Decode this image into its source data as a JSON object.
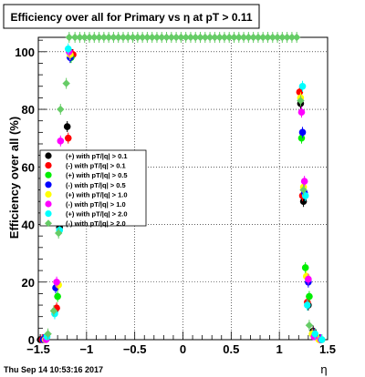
{
  "chart_data": {
    "type": "scatter",
    "title": "Efficiency over all for Primary vs   η at pT > 0.11",
    "xlabel": "η",
    "ylabel": "Efficiency over all (%)",
    "xlim": [
      -1.5,
      1.5
    ],
    "ylim": [
      0,
      105
    ],
    "x_ticks": [
      "−1.5",
      "−1",
      "−0.5",
      "0",
      "0.5",
      "1",
      "1.5"
    ],
    "y_ticks": [
      "0",
      "20",
      "40",
      "60",
      "80",
      "100"
    ],
    "grid": true,
    "legend_position": "middle-left",
    "timestamp": "Thu Sep 14 10:53:16 2017",
    "series": [
      {
        "name": "(+) with pT/|q| > 0.1",
        "color": "#000000",
        "points": [
          [
            -1.48,
            0
          ],
          [
            -1.33,
            10
          ],
          [
            -1.28,
            39
          ],
          [
            -1.2,
            74
          ],
          [
            -1.15,
            99
          ],
          [
            1.22,
            82
          ],
          [
            1.25,
            48
          ],
          [
            1.3,
            12
          ],
          [
            1.35,
            3
          ],
          [
            1.42,
            0
          ]
        ]
      },
      {
        "name": "(-) with pT/|q| > 0.1",
        "color": "#ff0000",
        "points": [
          [
            -1.46,
            0
          ],
          [
            -1.31,
            11
          ],
          [
            -1.26,
            42
          ],
          [
            -1.19,
            70
          ],
          [
            -1.14,
            99
          ],
          [
            1.21,
            86
          ],
          [
            1.24,
            50
          ],
          [
            1.29,
            13
          ],
          [
            1.36,
            2
          ],
          [
            1.43,
            0
          ]
        ]
      },
      {
        "name": "(+) with pT/|q| > 0.5",
        "color": "#00ee00",
        "points": [
          [
            -1.44,
            0
          ],
          [
            -1.3,
            15
          ],
          [
            -1.25,
            50
          ],
          [
            -1.18,
            64
          ],
          [
            -1.16,
            98
          ],
          [
            1.23,
            70
          ],
          [
            1.27,
            25
          ],
          [
            1.31,
            15
          ],
          [
            1.37,
            1
          ],
          [
            1.44,
            0
          ]
        ]
      },
      {
        "name": "(-) with pT/|q| > 0.5",
        "color": "#0000ff",
        "points": [
          [
            -1.45,
            0
          ],
          [
            -1.32,
            18
          ],
          [
            -1.26,
            55
          ],
          [
            -1.21,
            60
          ],
          [
            -1.17,
            98
          ],
          [
            1.24,
            72
          ],
          [
            1.26,
            51
          ],
          [
            1.3,
            20
          ],
          [
            1.35,
            2
          ],
          [
            1.42,
            0
          ]
        ]
      },
      {
        "name": "(+) with pT/|q| > 1.0",
        "color": "#ffff00",
        "points": [
          [
            -1.43,
            0
          ],
          [
            -1.29,
            19
          ],
          [
            -1.24,
            58
          ],
          [
            -1.2,
            63
          ],
          [
            -1.17,
            99
          ],
          [
            1.22,
            84
          ],
          [
            1.25,
            53
          ],
          [
            1.28,
            22
          ],
          [
            1.34,
            2
          ],
          [
            1.41,
            0
          ]
        ]
      },
      {
        "name": "(-) with pT/|q| > 1.0",
        "color": "#ff00ff",
        "points": [
          [
            -1.42,
            0
          ],
          [
            -1.31,
            20
          ],
          [
            -1.27,
            69
          ],
          [
            -1.22,
            62
          ],
          [
            -1.18,
            100
          ],
          [
            1.23,
            79
          ],
          [
            1.26,
            55
          ],
          [
            1.3,
            21
          ],
          [
            1.36,
            1
          ],
          [
            1.43,
            0
          ]
        ]
      },
      {
        "name": "(+) with pT/|q| > 2.0",
        "color": "#00ffff",
        "points": [
          [
            -1.41,
            1
          ],
          [
            -1.33,
            9
          ],
          [
            -1.28,
            38
          ],
          [
            -1.23,
            58
          ],
          [
            -1.19,
            101
          ],
          [
            1.24,
            88
          ],
          [
            1.27,
            50
          ],
          [
            1.29,
            12
          ],
          [
            1.37,
            2
          ],
          [
            1.44,
            0
          ]
        ]
      },
      {
        "name": "(-) with pT/|q| > 2.0",
        "color": "#66cc66",
        "points": [
          [
            -1.4,
            2
          ],
          [
            -1.34,
            10
          ],
          [
            -1.29,
            37
          ],
          [
            -1.27,
            80
          ],
          [
            -1.21,
            89
          ],
          [
            -1.18,
            105
          ],
          [
            -1.12,
            105
          ],
          [
            -1.07,
            105
          ],
          [
            -1.02,
            105
          ],
          [
            -0.97,
            105
          ],
          [
            -0.92,
            105
          ],
          [
            -0.87,
            105
          ],
          [
            -0.82,
            105
          ],
          [
            -0.77,
            105
          ],
          [
            -0.72,
            105
          ],
          [
            -0.67,
            105
          ],
          [
            -0.62,
            105
          ],
          [
            -0.57,
            105
          ],
          [
            -0.52,
            105
          ],
          [
            -0.47,
            105
          ],
          [
            -0.42,
            105
          ],
          [
            -0.37,
            105
          ],
          [
            -0.32,
            105
          ],
          [
            -0.27,
            105
          ],
          [
            -0.22,
            105
          ],
          [
            -0.17,
            105
          ],
          [
            -0.12,
            105
          ],
          [
            -0.07,
            105
          ],
          [
            -0.02,
            105
          ],
          [
            0.03,
            105
          ],
          [
            0.08,
            105
          ],
          [
            0.13,
            105
          ],
          [
            0.18,
            105
          ],
          [
            0.23,
            105
          ],
          [
            0.28,
            105
          ],
          [
            0.33,
            105
          ],
          [
            0.38,
            105
          ],
          [
            0.43,
            105
          ],
          [
            0.48,
            105
          ],
          [
            0.53,
            105
          ],
          [
            0.58,
            105
          ],
          [
            0.63,
            105
          ],
          [
            0.68,
            105
          ],
          [
            0.73,
            105
          ],
          [
            0.78,
            105
          ],
          [
            0.83,
            105
          ],
          [
            0.88,
            105
          ],
          [
            0.93,
            105
          ],
          [
            0.98,
            105
          ],
          [
            1.03,
            105
          ],
          [
            1.08,
            105
          ],
          [
            1.13,
            105
          ],
          [
            1.18,
            105
          ],
          [
            1.22,
            83
          ],
          [
            1.25,
            52
          ],
          [
            1.31,
            5
          ]
        ]
      }
    ]
  }
}
